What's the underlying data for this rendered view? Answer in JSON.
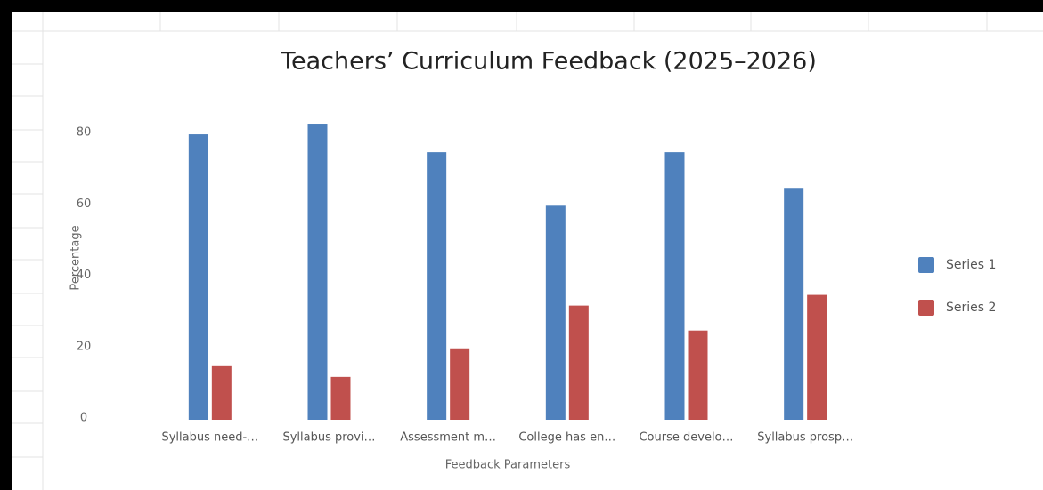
{
  "chart_data": {
    "type": "bar",
    "title": "Teachers’ Curriculum Feedback (2025–2026)",
    "x_label": "Feedback Parameters",
    "y_label": "Percentage",
    "categories": [
      "Syllabus need-…",
      "Syllabus provi…",
      "Assessment m…",
      "College has en…",
      "Course develo…",
      "Syllabus prosp…"
    ],
    "series": [
      {
        "name": "Series 1",
        "color": "#4f81bd",
        "values": [
          80,
          83,
          75,
          60,
          75,
          65
        ]
      },
      {
        "name": "Series 2",
        "color": "#c0504d",
        "values": [
          15,
          12,
          20,
          32,
          25,
          35
        ]
      }
    ],
    "ylim": [
      0,
      85
    ],
    "yticks": [
      0,
      20,
      40,
      60,
      80
    ],
    "grid": false,
    "legend": "right"
  }
}
